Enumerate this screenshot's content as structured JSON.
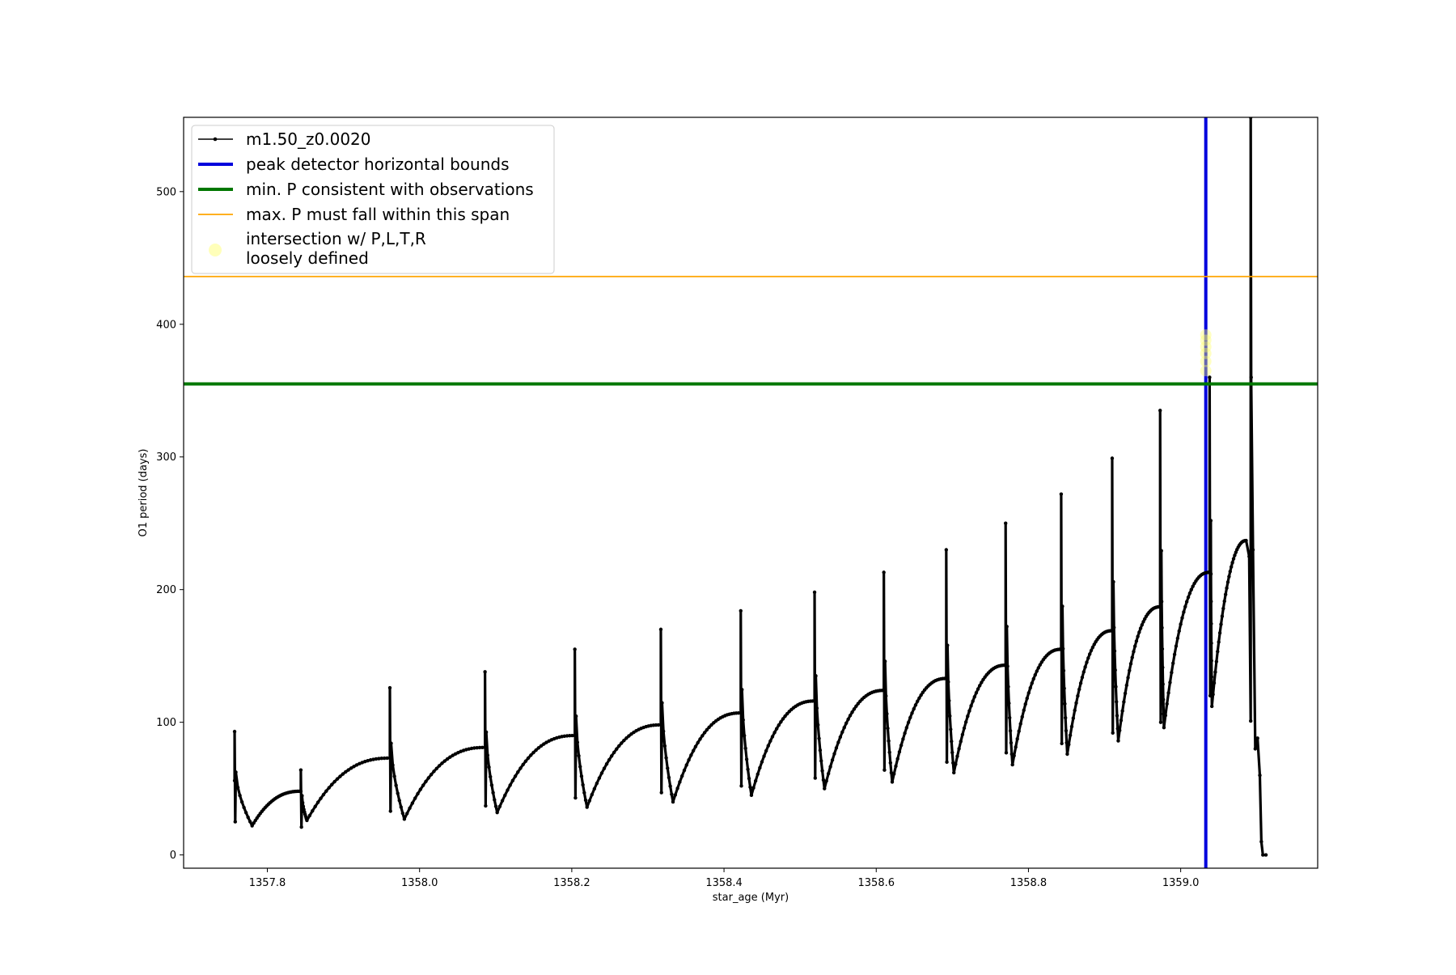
{
  "chart_data": {
    "type": "line",
    "title": "",
    "xlabel": "star_age (Myr)",
    "ylabel": "O1 period (days)",
    "xlim": [
      1357.69,
      1359.18
    ],
    "ylim": [
      -10,
      556
    ],
    "x_ticks": [
      "1357.8",
      "1358.0",
      "1358.2",
      "1358.4",
      "1358.6",
      "1358.8",
      "1359.0"
    ],
    "y_ticks": [
      "0",
      "100",
      "200",
      "300",
      "400",
      "500"
    ],
    "grid": false,
    "legend_position": "upper-left",
    "series": [
      {
        "name": "m1.50_z0.0020",
        "color": "#000000",
        "style": "line-with-dots",
        "pulses": [
          {
            "start": 1357.757,
            "spike_top": 93,
            "spike_bottom": 25,
            "min_x": 1357.78,
            "min_y": 22,
            "end_y": 48
          },
          {
            "start": 1357.844,
            "spike_top": 64,
            "spike_bottom": 21,
            "min_x": 1357.852,
            "min_y": 26,
            "end_y": 73
          },
          {
            "start": 1357.961,
            "spike_top": 126,
            "spike_bottom": 33,
            "min_x": 1357.98,
            "min_y": 27,
            "end_y": 81
          },
          {
            "start": 1358.086,
            "spike_top": 138,
            "spike_bottom": 37,
            "min_x": 1358.102,
            "min_y": 32,
            "end_y": 90
          },
          {
            "start": 1358.204,
            "spike_top": 155,
            "spike_bottom": 43,
            "min_x": 1358.22,
            "min_y": 36,
            "end_y": 98
          },
          {
            "start": 1358.317,
            "spike_top": 170,
            "spike_bottom": 47,
            "min_x": 1358.333,
            "min_y": 40,
            "end_y": 107
          },
          {
            "start": 1358.422,
            "spike_top": 184,
            "spike_bottom": 52,
            "min_x": 1358.436,
            "min_y": 45,
            "end_y": 116
          },
          {
            "start": 1358.519,
            "spike_top": 198,
            "spike_bottom": 58,
            "min_x": 1358.532,
            "min_y": 50,
            "end_y": 124
          },
          {
            "start": 1358.61,
            "spike_top": 213,
            "spike_bottom": 64,
            "min_x": 1358.621,
            "min_y": 55,
            "end_y": 133
          },
          {
            "start": 1358.692,
            "spike_top": 230,
            "spike_bottom": 70,
            "min_x": 1358.702,
            "min_y": 62,
            "end_y": 143
          },
          {
            "start": 1358.77,
            "spike_top": 250,
            "spike_bottom": 77,
            "min_x": 1358.779,
            "min_y": 68,
            "end_y": 155
          },
          {
            "start": 1358.843,
            "spike_top": 272,
            "spike_bottom": 84,
            "min_x": 1358.851,
            "min_y": 76,
            "end_y": 169
          },
          {
            "start": 1358.91,
            "spike_top": 299,
            "spike_bottom": 92,
            "min_x": 1358.918,
            "min_y": 86,
            "end_y": 187
          },
          {
            "start": 1358.973,
            "spike_top": 335,
            "spike_bottom": 100,
            "min_x": 1358.978,
            "min_y": 96,
            "end_y": 213
          },
          {
            "start": 1359.038,
            "spike_top": 360,
            "spike_bottom": 120,
            "min_x": 1359.041,
            "min_y": 112,
            "end_y": 237
          }
        ],
        "final_peak": {
          "x": 1359.086,
          "y": 237
        },
        "final_spike": {
          "x": 1359.092,
          "top": 556,
          "bottom": 101
        },
        "tail": [
          [
            1359.095,
            230
          ],
          [
            1359.098,
            80
          ],
          [
            1359.101,
            88
          ],
          [
            1359.104,
            60
          ],
          [
            1359.106,
            10
          ],
          [
            1359.108,
            0
          ],
          [
            1359.112,
            0
          ]
        ]
      },
      {
        "name": "peak detector horizontal bounds",
        "color": "#0000dd",
        "type": "vline",
        "x": 1359.033
      },
      {
        "name": "min. P consistent with observations",
        "color": "#007700",
        "type": "hline",
        "y": 355
      },
      {
        "name": "max. P must fall within this span",
        "color": "#ffa500",
        "type": "hline",
        "y": 436
      },
      {
        "name": "intersection w/ P,L,T,R\nloosely defined",
        "name_lines": [
          "intersection w/ P,L,T,R",
          "loosely defined"
        ],
        "color": "#ffff66",
        "type": "scatter",
        "points": [
          [
            1359.033,
            365
          ],
          [
            1359.033,
            372
          ],
          [
            1359.033,
            378
          ],
          [
            1359.033,
            383
          ],
          [
            1359.033,
            388
          ],
          [
            1359.033,
            392
          ]
        ]
      }
    ]
  }
}
